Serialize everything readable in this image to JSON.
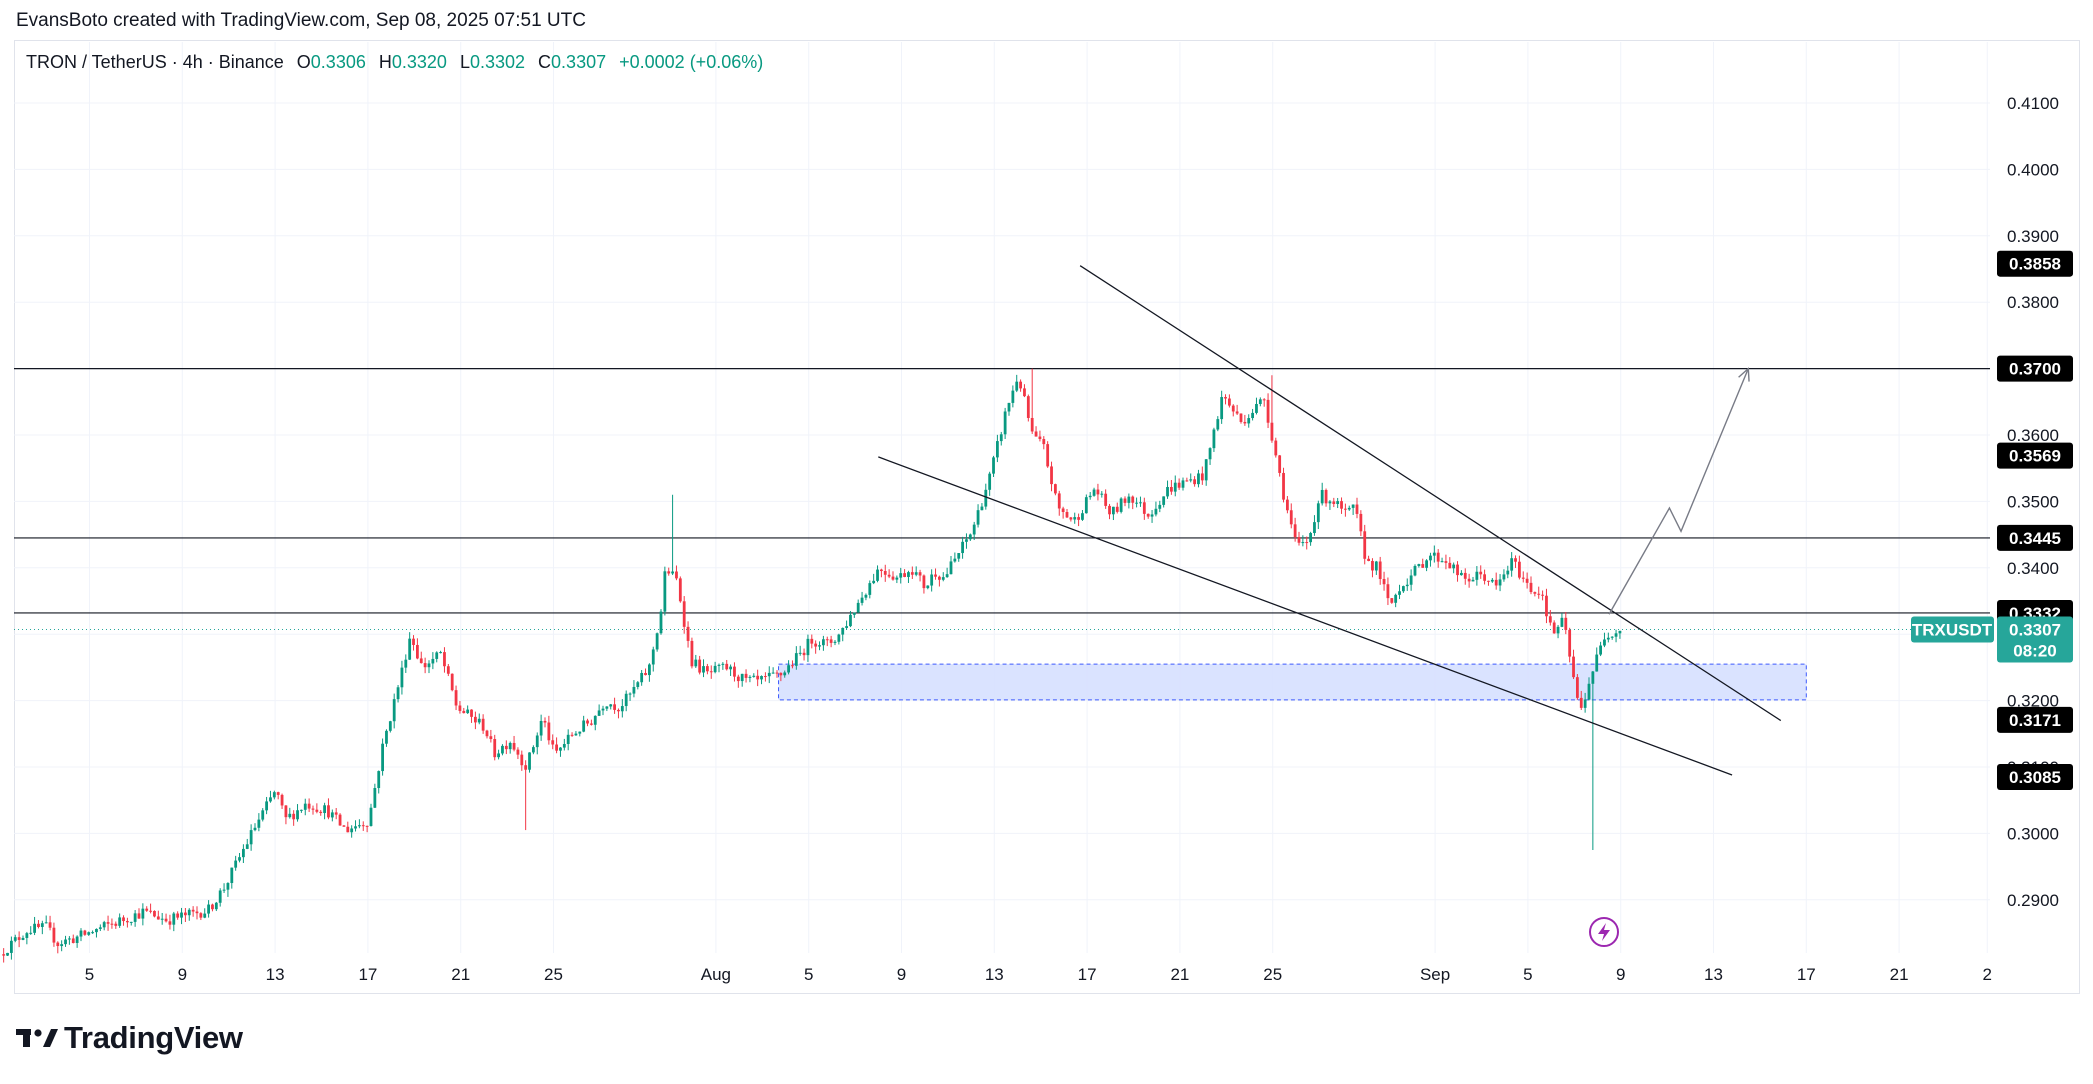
{
  "attribution": "EvansBoto created with TradingView.com, Sep 08, 2025 07:51 UTC",
  "header": {
    "symbol": "TRON / TetherUS · 4h · Binance",
    "open_label": "O",
    "open": "0.3306",
    "high_label": "H",
    "high": "0.3320",
    "low_label": "L",
    "low": "0.3302",
    "close_label": "C",
    "close": "0.3307",
    "change": "+0.0002 (+0.06%)"
  },
  "brand": "TradingView",
  "colors": {
    "up": "#089981",
    "down": "#f23645",
    "accent": "#26a69a",
    "zone_fill": "#d6e0ff",
    "zone_border": "#3d5afe",
    "line": "#131722"
  },
  "chart_data": {
    "type": "candlestick",
    "symbol": "TRXUSDT",
    "timeframe": "4h",
    "y_axis": {
      "ticks": [
        "0.2900",
        "0.3000",
        "0.3100",
        "0.3200",
        "0.3300",
        "0.3400",
        "0.3500",
        "0.3600",
        "0.3700",
        "0.3800",
        "0.3900",
        "0.4000",
        "0.4100"
      ],
      "ylim": [
        0.2825,
        0.4185
      ]
    },
    "x_axis": {
      "ticks": [
        {
          "label": "5",
          "day": 5
        },
        {
          "label": "9",
          "day": 9
        },
        {
          "label": "13",
          "day": 13
        },
        {
          "label": "17",
          "day": 17
        },
        {
          "label": "21",
          "day": 21
        },
        {
          "label": "25",
          "day": 25
        },
        {
          "label": "Aug",
          "day": 32
        },
        {
          "label": "5",
          "day": 36
        },
        {
          "label": "9",
          "day": 40
        },
        {
          "label": "13",
          "day": 44
        },
        {
          "label": "17",
          "day": 48
        },
        {
          "label": "21",
          "day": 52
        },
        {
          "label": "25",
          "day": 56
        },
        {
          "label": "Sep",
          "day": 63
        },
        {
          "label": "5",
          "day": 67
        },
        {
          "label": "9",
          "day": 71
        },
        {
          "label": "13",
          "day": 75
        },
        {
          "label": "17",
          "day": 79
        },
        {
          "label": "21",
          "day": 83
        },
        {
          "label": "2",
          "day": 86.8
        }
      ]
    },
    "price_path": [
      [
        1.2,
        0.2815
      ],
      [
        2.5,
        0.2855
      ],
      [
        3.3,
        0.2858
      ],
      [
        3.8,
        0.2835
      ],
      [
        4.6,
        0.2843
      ],
      [
        6.0,
        0.2862
      ],
      [
        7.5,
        0.2882
      ],
      [
        8.5,
        0.287
      ],
      [
        9.5,
        0.2878
      ],
      [
        10.3,
        0.2885
      ],
      [
        11.0,
        0.292
      ],
      [
        12.3,
        0.301
      ],
      [
        13.2,
        0.3065
      ],
      [
        13.6,
        0.302
      ],
      [
        14.5,
        0.3045
      ],
      [
        15.4,
        0.3035
      ],
      [
        16.2,
        0.3005
      ],
      [
        17.2,
        0.302
      ],
      [
        17.8,
        0.313
      ],
      [
        18.6,
        0.324
      ],
      [
        19.0,
        0.33
      ],
      [
        19.5,
        0.325
      ],
      [
        20.3,
        0.327
      ],
      [
        21.0,
        0.319
      ],
      [
        22.2,
        0.316
      ],
      [
        22.6,
        0.312
      ],
      [
        23.3,
        0.314
      ],
      [
        24.0,
        0.31
      ],
      [
        24.7,
        0.3175
      ],
      [
        25.2,
        0.3118
      ],
      [
        26.0,
        0.315
      ],
      [
        26.8,
        0.317
      ],
      [
        27.4,
        0.32
      ],
      [
        28.0,
        0.319
      ],
      [
        28.5,
        0.321
      ],
      [
        29.3,
        0.325
      ],
      [
        29.8,
        0.3335
      ],
      [
        30.0,
        0.34
      ],
      [
        30.5,
        0.338
      ],
      [
        31.1,
        0.326
      ],
      [
        31.8,
        0.324
      ],
      [
        32.6,
        0.325
      ],
      [
        33.4,
        0.323
      ],
      [
        34.0,
        0.3228
      ],
      [
        35.0,
        0.324
      ],
      [
        35.8,
        0.327
      ],
      [
        36.3,
        0.3292
      ],
      [
        37.0,
        0.3285
      ],
      [
        37.5,
        0.33
      ],
      [
        38.6,
        0.3365
      ],
      [
        39.2,
        0.34
      ],
      [
        40.0,
        0.3385
      ],
      [
        40.6,
        0.34
      ],
      [
        41.2,
        0.337
      ],
      [
        41.6,
        0.3395
      ],
      [
        42.0,
        0.3385
      ],
      [
        42.6,
        0.342
      ],
      [
        43.2,
        0.3455
      ],
      [
        44.0,
        0.354
      ],
      [
        44.7,
        0.364
      ],
      [
        45.2,
        0.369
      ],
      [
        45.8,
        0.36
      ],
      [
        46.3,
        0.358
      ],
      [
        46.9,
        0.349
      ],
      [
        47.6,
        0.347
      ],
      [
        48.5,
        0.352
      ],
      [
        49.2,
        0.348
      ],
      [
        50.0,
        0.351
      ],
      [
        50.8,
        0.348
      ],
      [
        51.7,
        0.352
      ],
      [
        52.5,
        0.353
      ],
      [
        53.2,
        0.354
      ],
      [
        54.0,
        0.366
      ],
      [
        54.8,
        0.362
      ],
      [
        55.4,
        0.364
      ],
      [
        55.8,
        0.3655
      ],
      [
        56.3,
        0.357
      ],
      [
        56.7,
        0.35
      ],
      [
        57.2,
        0.343
      ],
      [
        57.7,
        0.344
      ],
      [
        58.2,
        0.351
      ],
      [
        58.8,
        0.35
      ],
      [
        59.3,
        0.348
      ],
      [
        59.7,
        0.349
      ],
      [
        60.2,
        0.341
      ],
      [
        60.7,
        0.34
      ],
      [
        61.2,
        0.334
      ],
      [
        61.6,
        0.337
      ],
      [
        62.2,
        0.339
      ],
      [
        62.9,
        0.342
      ],
      [
        63.7,
        0.341
      ],
      [
        64.4,
        0.338
      ],
      [
        65.2,
        0.339
      ],
      [
        65.8,
        0.337
      ],
      [
        66.5,
        0.341
      ],
      [
        67.2,
        0.337
      ],
      [
        67.8,
        0.336
      ],
      [
        68.2,
        0.33
      ],
      [
        68.7,
        0.332
      ],
      [
        69.0,
        0.326
      ],
      [
        69.4,
        0.318
      ],
      [
        69.9,
        0.324
      ],
      [
        70.5,
        0.33
      ],
      [
        71.0,
        0.3307
      ]
    ],
    "candle_extremes": [
      {
        "day": 30.2,
        "high": 0.351
      },
      {
        "day": 45.6,
        "high": 0.37
      },
      {
        "day": 23.8,
        "low": 0.3005
      },
      {
        "day": 55.9,
        "high": 0.369
      },
      {
        "day": 69.8,
        "low": 0.2975
      }
    ],
    "horizontal_levels": [
      0.37,
      0.3445,
      0.3332
    ],
    "demand_zone": {
      "x_from": 34.7,
      "x_to": 79.0,
      "low": 0.3201,
      "high": 0.3255
    },
    "wedge_upper": {
      "from": [
        47.7,
        0.3855
      ],
      "to": [
        77.9,
        0.317
      ]
    },
    "wedge_lower": {
      "from": [
        39.0,
        0.3567
      ],
      "to": [
        75.8,
        0.3088
      ]
    },
    "projection": [
      [
        70.5,
        0.333
      ],
      [
        73.1,
        0.349
      ],
      [
        73.6,
        0.3455
      ],
      [
        76.5,
        0.37
      ]
    ],
    "price_tags": [
      "0.3858",
      "0.3700",
      "0.3569",
      "0.3445",
      "0.3332",
      "0.3171",
      "0.3085"
    ],
    "current_price": {
      "label": "TRXUSDT",
      "value": "0.3307",
      "countdown": "08:20"
    }
  }
}
